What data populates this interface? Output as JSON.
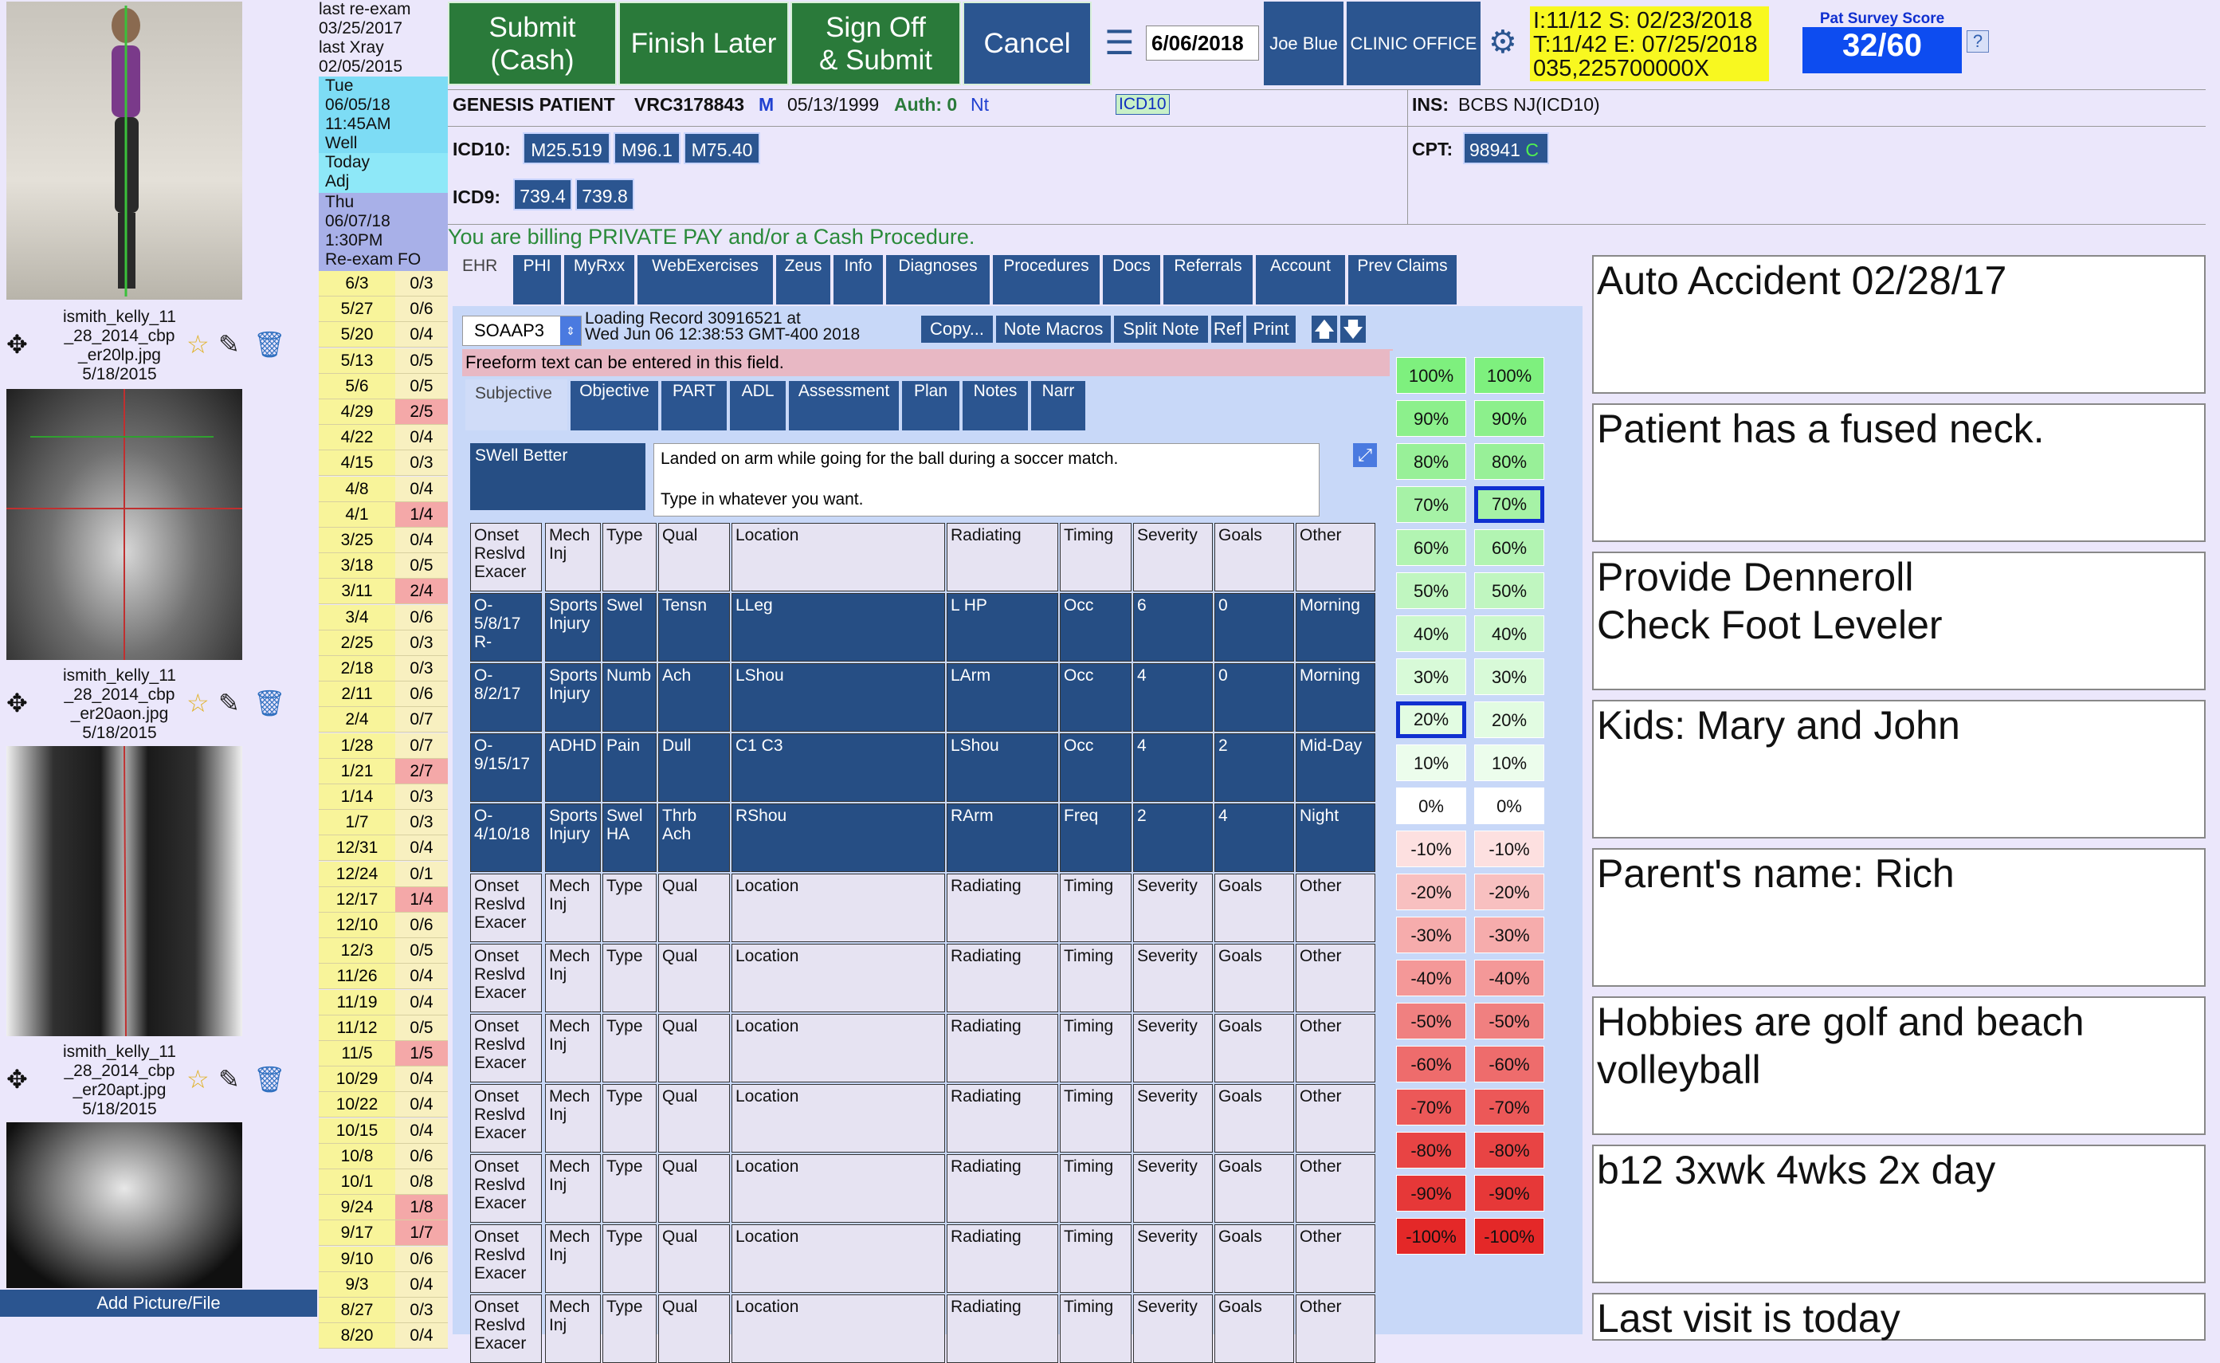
{
  "left_images": [
    {
      "filename_lines": [
        "ismith_kelly_11",
        "_28_2014_cbp",
        "_er20lp.jpg",
        "5/18/2015"
      ]
    },
    {
      "filename_lines": [
        "ismith_kelly_11",
        "_28_2014_cbp",
        "_er20aon.jpg",
        "5/18/2015"
      ]
    },
    {
      "filename_lines": [
        "ismith_kelly_11",
        "_28_2014_cbp",
        "_er20apt.jpg",
        "5/18/2015"
      ]
    }
  ],
  "add_picture_label": "Add Picture/File",
  "dates_header": {
    "line1": "last re-exam",
    "line2": "03/25/2017",
    "line3": "last Xray",
    "line4": "02/05/2015",
    "appt1": [
      "Tue",
      "06/05/18",
      "11:45AM",
      "Well"
    ],
    "today": [
      "Today",
      "Adj"
    ],
    "appt2": [
      "Thu",
      "06/07/18",
      "1:30PM",
      "Re-exam FO"
    ]
  },
  "visits": [
    [
      "6/3",
      "0/3"
    ],
    [
      "5/27",
      "0/6"
    ],
    [
      "5/20",
      "0/4"
    ],
    [
      "5/13",
      "0/5"
    ],
    [
      "5/6",
      "0/5"
    ],
    [
      "4/29",
      "2/5"
    ],
    [
      "4/22",
      "0/4"
    ],
    [
      "4/15",
      "0/3"
    ],
    [
      "4/8",
      "0/4"
    ],
    [
      "4/1",
      "1/4"
    ],
    [
      "3/25",
      "0/4"
    ],
    [
      "3/18",
      "0/5"
    ],
    [
      "3/11",
      "2/4"
    ],
    [
      "3/4",
      "0/6"
    ],
    [
      "2/25",
      "0/3"
    ],
    [
      "2/18",
      "0/3"
    ],
    [
      "2/11",
      "0/6"
    ],
    [
      "2/4",
      "0/7"
    ],
    [
      "1/28",
      "0/7"
    ],
    [
      "1/21",
      "2/7"
    ],
    [
      "1/14",
      "0/3"
    ],
    [
      "1/7",
      "0/3"
    ],
    [
      "12/31",
      "0/4"
    ],
    [
      "12/24",
      "0/1"
    ],
    [
      "12/17",
      "1/4"
    ],
    [
      "12/10",
      "0/6"
    ],
    [
      "12/3",
      "0/5"
    ],
    [
      "11/26",
      "0/4"
    ],
    [
      "11/19",
      "0/4"
    ],
    [
      "11/12",
      "0/5"
    ],
    [
      "11/5",
      "1/5"
    ],
    [
      "10/29",
      "0/4"
    ],
    [
      "10/22",
      "0/4"
    ],
    [
      "10/15",
      "0/4"
    ],
    [
      "10/8",
      "0/6"
    ],
    [
      "10/1",
      "0/8"
    ],
    [
      "9/24",
      "1/8"
    ],
    [
      "9/17",
      "1/7"
    ],
    [
      "9/10",
      "0/6"
    ],
    [
      "9/3",
      "0/4"
    ],
    [
      "8/27",
      "0/3"
    ],
    [
      "8/20",
      "0/4"
    ]
  ],
  "toolbar": {
    "submit_cash": [
      "Submit",
      "(Cash)"
    ],
    "finish_later": "Finish Later",
    "sign_off": [
      "Sign Off",
      "& Submit"
    ],
    "cancel": "Cancel",
    "date_value": "6/06/2018",
    "provider": "Joe Blue",
    "office": "CLINIC OFFICE",
    "info_lines": [
      "I:11/12  S: 02/23/2018",
      "T:11/42  E: 07/25/2018",
      "035,225700000X"
    ],
    "survey_label": "Pat Survey Score",
    "survey_value": "32/60",
    "help": "?"
  },
  "patient": {
    "type": "GENESIS PATIENT",
    "id": "VRC3178843",
    "sex": "M",
    "dob": "05/13/1999",
    "auth": "Auth: 0",
    "nt": "Nt",
    "icd_badge": "ICD10",
    "ins": "INS:",
    "ins_value": "BCBS NJ(ICD10)",
    "icd10_label": "ICD10:",
    "icd10": [
      "M25.519",
      "M96.1",
      "M75.40"
    ],
    "cpt_label": "CPT:",
    "cpt": "98941",
    "cpt_suffix": "C",
    "icd9_label": "ICD9:",
    "icd9": [
      "739.4",
      "739.8"
    ],
    "billing_msg": "You are billing PRIVATE PAY and/or a Cash Procedure."
  },
  "tabs": [
    "EHR",
    "PHI",
    "MyRxx",
    "WebExercises",
    "Zeus",
    "Info",
    "Diagnoses",
    "Procedures",
    "Docs",
    "Referrals",
    "Account",
    "Prev Claims"
  ],
  "note_bar": {
    "template": "SOAAP3",
    "loading": [
      "Loading Record 30916521 at",
      "Wed Jun 06 12:38:53 GMT-400 2018"
    ],
    "copy": "Copy...",
    "macros": "Note Macros",
    "split": "Split Note",
    "ref": "Ref",
    "print": "Print"
  },
  "freeform_msg": "Freeform text can be entered in this field.",
  "subtabs": [
    "Subjective",
    "Objective",
    "PART",
    "ADL",
    "Assessment",
    "Plan",
    "Notes",
    "Narr"
  ],
  "subjective": {
    "label": "SWell Better",
    "text_line1": "Landed on arm while going for the ball during a soccer match.",
    "text_line2": "Type in whatever you want."
  },
  "empty_row": [
    "Onset\nReslvd\nExacer",
    "Mech\nInj",
    "Type",
    "Qual",
    "Location",
    "Radiating",
    "Timing",
    "Severity",
    "Goals",
    "Other"
  ],
  "complaints": [
    [
      "O-\n5/8/17\nR-",
      "Sports\nInjury",
      "Swel",
      "Tensn",
      "LLeg",
      "L HP",
      "Occ",
      "6",
      "0",
      "Morning"
    ],
    [
      "O-\n8/2/17",
      "Sports\nInjury",
      "Numb",
      "Ach",
      "LShou",
      "LArm",
      "Occ",
      "4",
      "0",
      "Morning"
    ],
    [
      "O-\n9/15/17",
      "ADHD",
      "Pain",
      "Dull",
      "C1 C3",
      "LShou",
      "Occ",
      "4",
      "2",
      "Mid-Day"
    ],
    [
      "O-\n4/10/18",
      "Sports\nInjury",
      "Swel\nHA",
      "Thrb\nAch",
      "RShou",
      "RArm",
      "Freq",
      "2",
      "4",
      "Night"
    ]
  ],
  "percent_scale": [
    "100%",
    "90%",
    "80%",
    "70%",
    "60%",
    "50%",
    "40%",
    "30%",
    "20%",
    "10%",
    "0%",
    "-10%",
    "-20%",
    "-30%",
    "-40%",
    "-50%",
    "-60%",
    "-70%",
    "-80%",
    "-90%",
    "-100%"
  ],
  "percent_selected": {
    "left": "20%",
    "right": "70%"
  },
  "notes": [
    "Auto Accident 02/28/17",
    "Patient has a fused neck.",
    "Provide Denneroll\nCheck Foot Leveler",
    "Kids: Mary and John",
    "Parent's name: Rich",
    "Hobbies are golf and beach volleyball",
    "b12 3xwk 4wks 2x day",
    "Last visit is today"
  ],
  "colors": {
    "nav_blue": "#2b5590",
    "green_button": "#2a7a3a",
    "freeform_pink": "#e8b8c4"
  }
}
